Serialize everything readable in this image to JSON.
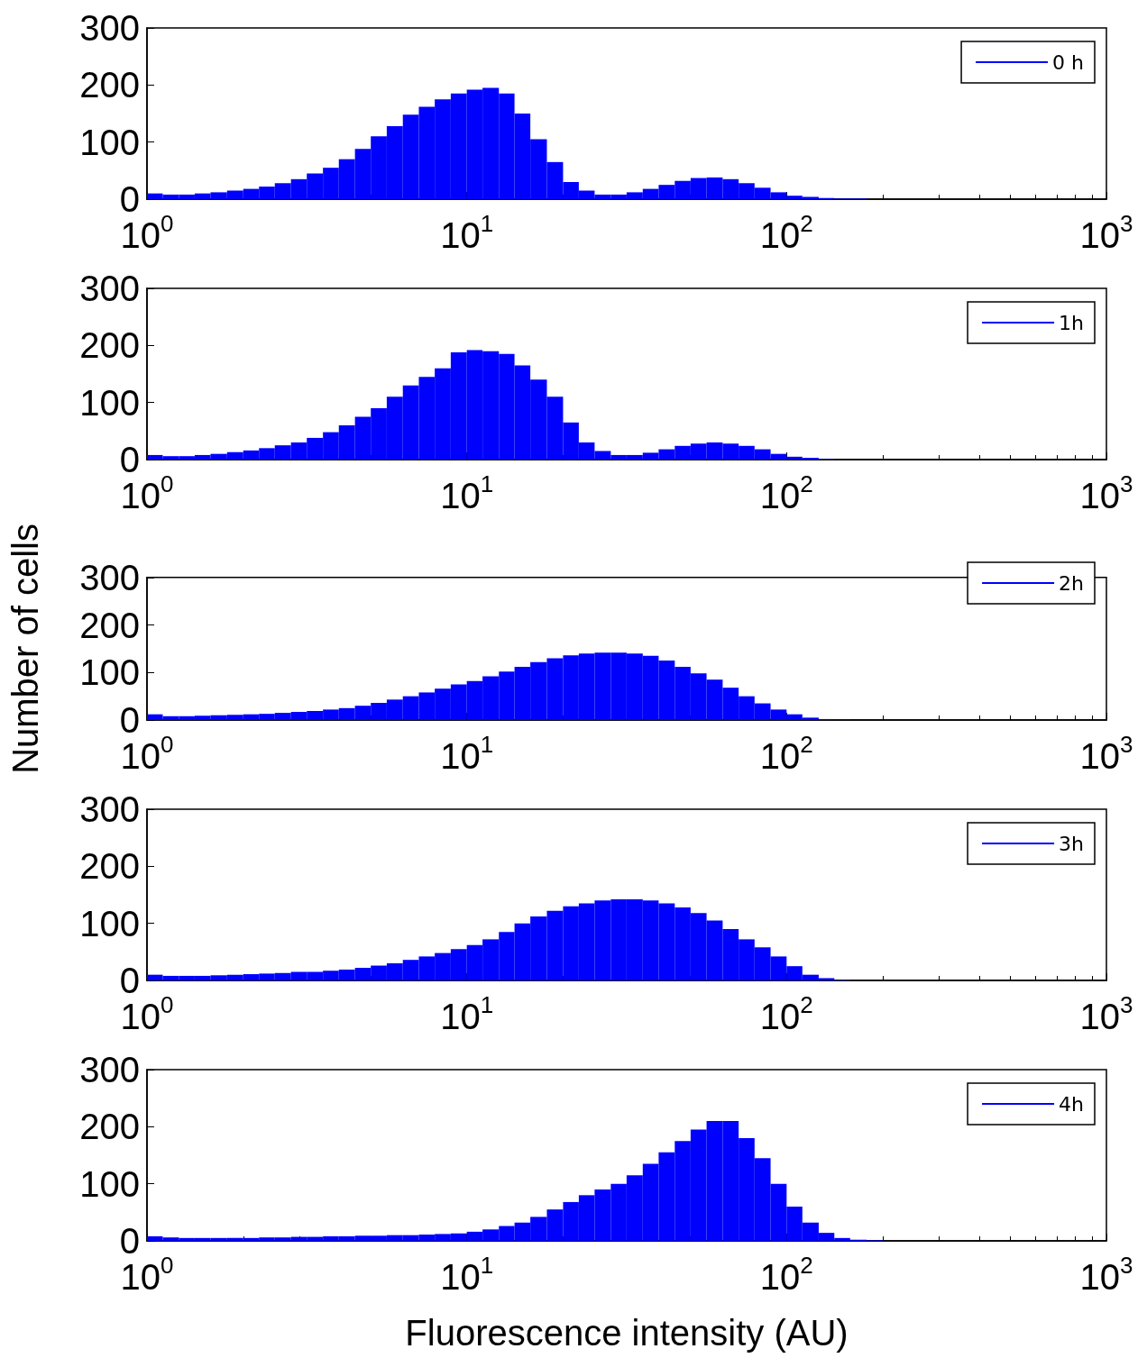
{
  "chart_data": [
    {
      "type": "histogram",
      "log": "x",
      "legend": "top right",
      "bins": [
        1,
        1.12,
        1.26,
        1.41,
        1.58,
        1.78,
        2,
        2.24,
        2.51,
        2.82,
        3.16,
        3.55,
        3.98,
        4.47,
        5.01,
        5.62,
        6.31,
        7.08,
        7.94,
        8.91,
        10,
        11.2,
        12.6,
        14.1,
        15.8,
        17.8,
        20,
        22.4,
        25.1,
        28.2,
        31.6,
        35.5,
        39.8,
        44.7,
        50.1,
        56.2,
        63.1,
        70.8,
        79.4,
        89.1,
        100,
        112,
        126,
        141,
        158,
        178
      ],
      "series": [
        {
          "name": "0 h",
          "color": "#0000ff",
          "values": [
            10,
            8,
            8,
            10,
            12,
            15,
            18,
            22,
            28,
            35,
            45,
            55,
            70,
            88,
            110,
            128,
            148,
            162,
            175,
            185,
            192,
            195,
            185,
            150,
            105,
            65,
            30,
            15,
            8,
            8,
            12,
            18,
            25,
            32,
            37,
            38,
            35,
            28,
            20,
            12,
            6,
            4,
            2,
            1,
            1
          ]
        }
      ],
      "xlim": [
        1,
        1000
      ],
      "xticks": [
        {
          "value": 1,
          "label": "10$^{0}$"
        },
        {
          "value": 10,
          "label": "10$^{1}$"
        },
        {
          "value": 100,
          "label": "10$^{2}$"
        },
        {
          "value": 1000,
          "label": "10$^{3}$"
        }
      ],
      "ylim": [
        0,
        300
      ],
      "yticks": [
        0,
        100,
        200,
        300
      ]
    },
    {
      "type": "histogram",
      "log": "x",
      "legend": "top right",
      "bins": [
        1,
        1.12,
        1.26,
        1.41,
        1.58,
        1.78,
        2,
        2.24,
        2.51,
        2.82,
        3.16,
        3.55,
        3.98,
        4.47,
        5.01,
        5.62,
        6.31,
        7.08,
        7.94,
        8.91,
        10,
        11.2,
        12.6,
        14.1,
        15.8,
        17.8,
        20,
        22.4,
        25.1,
        28.2,
        31.6,
        35.5,
        39.8,
        44.7,
        50.1,
        56.2,
        63.1,
        70.8,
        79.4,
        89.1,
        100,
        112,
        126,
        141
      ],
      "series": [
        {
          "name": "1h",
          "color": "#0000ff",
          "values": [
            8,
            6,
            6,
            8,
            10,
            13,
            16,
            20,
            25,
            30,
            38,
            48,
            60,
            75,
            90,
            110,
            130,
            145,
            160,
            188,
            192,
            190,
            185,
            165,
            140,
            110,
            65,
            30,
            15,
            8,
            8,
            12,
            18,
            24,
            28,
            30,
            28,
            24,
            18,
            10,
            5,
            3,
            1
          ]
        }
      ],
      "xlim": [
        1,
        1000
      ],
      "xticks": [
        {
          "value": 1,
          "label": "10$^{0}$"
        },
        {
          "value": 10,
          "label": "10$^{1}$"
        },
        {
          "value": 100,
          "label": "10$^{2}$"
        },
        {
          "value": 1000,
          "label": "10$^{3}$"
        }
      ],
      "ylim": [
        0,
        300
      ],
      "yticks": [
        0,
        100,
        200,
        300
      ]
    },
    {
      "type": "histogram",
      "log": "x",
      "legend": "top right",
      "ylabel": "Number of cells",
      "bins": [
        1,
        1.12,
        1.26,
        1.41,
        1.58,
        1.78,
        2,
        2.24,
        2.51,
        2.82,
        3.16,
        3.55,
        3.98,
        4.47,
        5.01,
        5.62,
        6.31,
        7.08,
        7.94,
        8.91,
        10,
        11.2,
        12.6,
        14.1,
        15.8,
        17.8,
        20,
        22.4,
        25.1,
        28.2,
        31.6,
        35.5,
        39.8,
        44.7,
        50.1,
        56.2,
        63.1,
        70.8,
        79.4,
        89.1,
        100,
        112,
        126,
        141,
        158
      ],
      "series": [
        {
          "name": "2h",
          "color": "#0000ff",
          "values": [
            12,
            8,
            8,
            9,
            10,
            11,
            12,
            13,
            15,
            17,
            19,
            22,
            25,
            30,
            36,
            43,
            50,
            58,
            66,
            75,
            82,
            92,
            102,
            112,
            122,
            130,
            136,
            140,
            142,
            142,
            140,
            135,
            125,
            112,
            98,
            85,
            68,
            50,
            35,
            22,
            12,
            5,
            2,
            1
          ]
        }
      ],
      "xlim": [
        1,
        1000
      ],
      "xticks": [
        {
          "value": 1,
          "label": "10$^{0}$"
        },
        {
          "value": 10,
          "label": "10$^{1}$"
        },
        {
          "value": 100,
          "label": "10$^{2}$"
        },
        {
          "value": 1000,
          "label": "10$^{3}$"
        }
      ],
      "ylim": [
        0,
        300
      ],
      "yticks": [
        0,
        100,
        200,
        300
      ]
    },
    {
      "type": "histogram",
      "log": "x",
      "legend": "top right",
      "bins": [
        1,
        1.12,
        1.26,
        1.41,
        1.58,
        1.78,
        2,
        2.24,
        2.51,
        2.82,
        3.16,
        3.55,
        3.98,
        4.47,
        5.01,
        5.62,
        6.31,
        7.08,
        7.94,
        8.91,
        10,
        11.2,
        12.6,
        14.1,
        15.8,
        17.8,
        20,
        22.4,
        25.1,
        28.2,
        31.6,
        35.5,
        39.8,
        44.7,
        50.1,
        56.2,
        63.1,
        70.8,
        79.4,
        89.1,
        100,
        112,
        126,
        141,
        158
      ],
      "series": [
        {
          "name": "3h",
          "color": "#0000ff",
          "values": [
            10,
            8,
            8,
            8,
            9,
            10,
            11,
            12,
            13,
            15,
            15,
            17,
            19,
            22,
            26,
            30,
            36,
            42,
            48,
            55,
            62,
            72,
            85,
            100,
            112,
            122,
            130,
            135,
            140,
            142,
            142,
            140,
            135,
            128,
            118,
            105,
            90,
            72,
            58,
            42,
            25,
            10,
            4,
            1
          ]
        }
      ],
      "xlim": [
        1,
        1000
      ],
      "xticks": [
        {
          "value": 1,
          "label": "10$^{0}$"
        },
        {
          "value": 10,
          "label": "10$^{1}$"
        },
        {
          "value": 100,
          "label": "10$^{2}$"
        },
        {
          "value": 1000,
          "label": "10$^{3}$"
        }
      ],
      "ylim": [
        0,
        300
      ],
      "yticks": [
        0,
        100,
        200,
        300
      ]
    },
    {
      "type": "histogram",
      "log": "x",
      "legend": "top right",
      "xlabel": "Fluorescence intensity (AU)",
      "bins": [
        1,
        1.12,
        1.26,
        1.41,
        1.58,
        1.78,
        2,
        2.24,
        2.51,
        2.82,
        3.16,
        3.55,
        3.98,
        4.47,
        5.01,
        5.62,
        6.31,
        7.08,
        7.94,
        8.91,
        10,
        11.2,
        12.6,
        14.1,
        15.8,
        17.8,
        20,
        22.4,
        25.1,
        28.2,
        31.6,
        35.5,
        39.8,
        44.7,
        50.1,
        56.2,
        63.1,
        70.8,
        79.4,
        89.1,
        100,
        112,
        126,
        141,
        158,
        178,
        200
      ],
      "series": [
        {
          "name": "4h",
          "color": "#0000ff",
          "values": [
            8,
            6,
            5,
            5,
            5,
            5,
            5,
            6,
            6,
            7,
            7,
            8,
            8,
            9,
            9,
            10,
            10,
            11,
            12,
            13,
            16,
            20,
            26,
            32,
            42,
            55,
            68,
            80,
            90,
            100,
            115,
            135,
            155,
            175,
            195,
            210,
            210,
            180,
            145,
            100,
            60,
            32,
            14,
            5,
            2,
            1
          ]
        }
      ],
      "xlim": [
        1,
        1000
      ],
      "xticks": [
        {
          "value": 1,
          "label": "10$^{0}$"
        },
        {
          "value": 10,
          "label": "10$^{1}$"
        },
        {
          "value": 100,
          "label": "10$^{2}$"
        },
        {
          "value": 1000,
          "label": "10$^{3}$"
        }
      ],
      "ylim": [
        0,
        300
      ],
      "yticks": [
        0,
        100,
        200,
        300
      ]
    }
  ]
}
